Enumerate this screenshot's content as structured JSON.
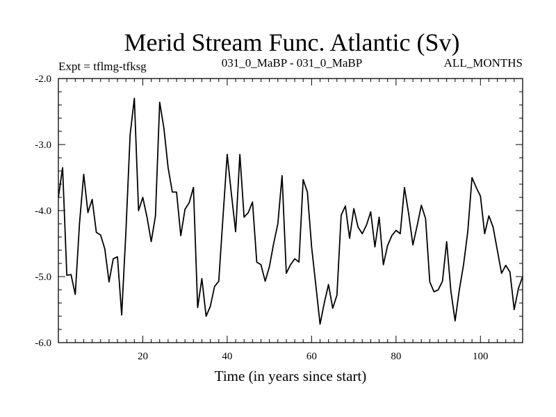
{
  "chart_data": {
    "type": "line",
    "title": "Merid Stream Func. Atlantic (Sv)",
    "subtitle_left": "Expt = tflmg-tfksg",
    "subtitle_center": "031_0_MaBP - 031_0_MaBP",
    "subtitle_right": "ALL_MONTHS",
    "xlabel": "Time (in years since start)",
    "ylabel": "",
    "xlim": [
      0,
      110
    ],
    "ylim": [
      -6.0,
      -2.0
    ],
    "xticks": [
      20,
      40,
      60,
      80,
      100
    ],
    "xtick_labels": [
      "20",
      "40",
      "60",
      "80",
      "100"
    ],
    "yticks": [
      -2.0,
      -3.0,
      -4.0,
      -5.0,
      -6.0
    ],
    "ytick_labels": [
      "-2.0",
      "-3.0",
      "-4.0",
      "-5.0",
      "-6.0"
    ],
    "grid": false,
    "series": [
      {
        "name": "Merid Stream Func. Atlantic",
        "x": [
          0,
          1,
          2,
          3,
          4,
          5,
          6,
          7,
          8,
          9,
          10,
          11,
          12,
          13,
          14,
          15,
          16,
          17,
          18,
          19,
          20,
          21,
          22,
          23,
          24,
          25,
          26,
          27,
          28,
          29,
          30,
          31,
          32,
          33,
          34,
          35,
          36,
          37,
          38,
          39,
          40,
          41,
          42,
          43,
          44,
          45,
          46,
          47,
          48,
          49,
          50,
          51,
          52,
          53,
          54,
          55,
          56,
          57,
          58,
          59,
          60,
          61,
          62,
          63,
          64,
          65,
          66,
          67,
          68,
          69,
          70,
          71,
          72,
          73,
          74,
          75,
          76,
          77,
          78,
          79,
          80,
          81,
          82,
          83,
          84,
          85,
          86,
          87,
          88,
          89,
          90,
          91,
          92,
          93,
          94,
          95,
          96,
          97,
          98,
          99,
          100,
          101,
          102,
          103,
          104,
          105,
          106,
          107,
          108,
          109,
          110
        ],
        "values": [
          -3.8,
          -3.35,
          -4.98,
          -4.97,
          -5.27,
          -4.2,
          -3.45,
          -4.03,
          -3.83,
          -4.33,
          -4.37,
          -4.58,
          -5.08,
          -4.73,
          -4.7,
          -5.58,
          -4.32,
          -2.85,
          -2.3,
          -4.0,
          -3.8,
          -4.1,
          -4.47,
          -4.08,
          -2.36,
          -2.75,
          -3.35,
          -3.72,
          -3.72,
          -4.38,
          -3.98,
          -3.88,
          -3.65,
          -5.47,
          -5.03,
          -5.6,
          -5.45,
          -5.15,
          -5.07,
          -4.1,
          -3.15,
          -3.75,
          -4.32,
          -3.15,
          -4.1,
          -4.03,
          -3.87,
          -4.78,
          -4.82,
          -5.07,
          -4.85,
          -4.5,
          -4.2,
          -3.47,
          -4.95,
          -4.82,
          -4.73,
          -4.78,
          -3.53,
          -3.72,
          -4.55,
          -5.13,
          -5.72,
          -5.4,
          -5.12,
          -5.48,
          -5.28,
          -4.07,
          -3.93,
          -4.42,
          -3.97,
          -4.25,
          -4.35,
          -4.22,
          -4.02,
          -4.55,
          -4.1,
          -4.82,
          -4.53,
          -4.38,
          -4.3,
          -4.35,
          -3.65,
          -4.05,
          -4.52,
          -4.23,
          -3.92,
          -4.12,
          -5.08,
          -5.23,
          -5.2,
          -5.07,
          -4.47,
          -5.22,
          -5.67,
          -5.2,
          -4.82,
          -4.32,
          -3.5,
          -3.65,
          -3.78,
          -4.35,
          -4.08,
          -4.25,
          -4.6,
          -4.95,
          -4.83,
          -4.93,
          -5.5,
          -5.18,
          -5.0
        ]
      }
    ]
  }
}
